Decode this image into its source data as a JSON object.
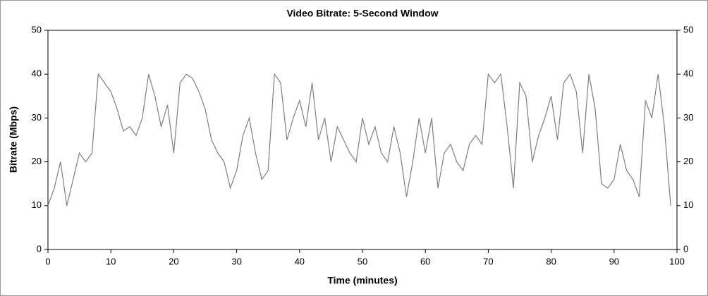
{
  "chart_data": {
    "type": "line",
    "title": "Video Bitrate: 5-Second Window",
    "xlabel": "Time (minutes)",
    "ylabel": "Bitrate (Mbps)",
    "x": [
      0,
      1,
      2,
      3,
      4,
      5,
      6,
      7,
      8,
      9,
      10,
      11,
      12,
      13,
      14,
      15,
      16,
      17,
      18,
      19,
      20,
      21,
      22,
      23,
      24,
      25,
      26,
      27,
      28,
      29,
      30,
      31,
      32,
      33,
      34,
      35,
      36,
      37,
      38,
      39,
      40,
      41,
      42,
      43,
      44,
      45,
      46,
      47,
      48,
      49,
      50,
      51,
      52,
      53,
      54,
      55,
      56,
      57,
      58,
      59,
      60,
      61,
      62,
      63,
      64,
      65,
      66,
      67,
      68,
      69,
      70,
      71,
      72,
      73,
      74,
      75,
      76,
      77,
      78,
      79,
      80,
      81,
      82,
      83,
      84,
      85,
      86,
      87,
      88,
      89,
      90,
      91,
      92,
      93,
      94,
      95,
      96,
      97,
      98,
      99
    ],
    "series": [
      {
        "color": "#7f7f7f",
        "values": [
          10,
          14,
          20,
          10,
          16,
          22,
          20,
          22,
          40,
          38,
          36,
          32,
          27,
          28,
          26,
          30,
          40,
          35,
          28,
          33,
          22,
          38,
          40,
          39,
          36,
          32,
          25,
          22,
          20,
          14,
          18,
          26,
          30,
          22,
          16,
          18,
          40,
          38,
          25,
          30,
          34,
          28,
          38,
          25,
          30,
          20,
          28,
          25,
          22,
          20,
          30,
          24,
          28,
          22,
          20,
          28,
          22,
          12,
          20,
          30,
          22,
          30,
          14,
          22,
          24,
          20,
          18,
          24,
          26,
          24,
          40,
          38,
          40,
          28,
          14,
          38,
          35,
          20,
          26,
          30,
          35,
          25,
          38,
          40,
          36,
          22,
          40,
          32,
          15,
          14,
          16,
          24,
          18,
          16,
          12,
          34,
          30,
          40,
          28,
          10
        ]
      }
    ],
    "xlim": [
      0,
      100
    ],
    "xticks": [
      0,
      10,
      20,
      30,
      40,
      50,
      60,
      70,
      80,
      90,
      100
    ],
    "ylim": [
      0,
      50
    ],
    "yticks": [
      0,
      10,
      20,
      30,
      40,
      50
    ],
    "y2lim": [
      0,
      50
    ],
    "y2ticks": [
      0,
      10,
      20,
      30,
      40,
      50
    ]
  }
}
